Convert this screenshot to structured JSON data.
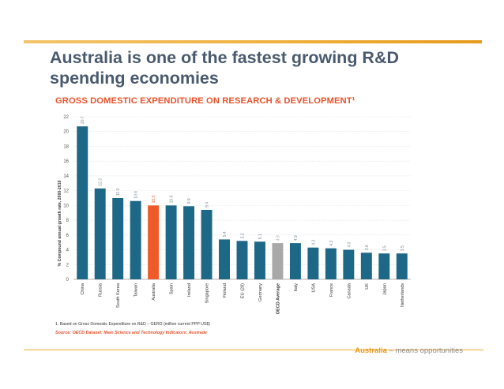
{
  "slide": {
    "title": "Australia is one of the fastest growing R&D spending economies",
    "footnote": "1. Based on Gross Domestic Expenditure on R&D – GERD (million current PPP US$)",
    "source": "Source: OECD Dataset: Main Science and Technology Indicators; Austrade",
    "tagline_brand": "Australia",
    "tagline_rest": "– means opportunities"
  },
  "colors": {
    "default": "#1d6787",
    "highlight": "#ef5a2a",
    "average": "#a8a8a8",
    "accent": "#efae3a"
  },
  "chart_data": {
    "type": "bar",
    "title": "GROSS DOMESTIC EXPENDITURE ON RESEARCH & DEVELOPMENT¹",
    "ylabel": "% Compound annual growth rate, 2000-2010",
    "xlabel": "",
    "ylim": [
      0,
      22
    ],
    "yticks": [
      0,
      2,
      4,
      6,
      8,
      10,
      12,
      14,
      16,
      18,
      20,
      22
    ],
    "categories": [
      "China",
      "Russia",
      "South Korea",
      "Taiwan",
      "Australia",
      "Spain",
      "Ireland",
      "Singapore",
      "Finland",
      "EU (28)",
      "Germany",
      "OECD Average",
      "Italy",
      "USA",
      "France",
      "Canada",
      "UK",
      "Japan",
      "Netherlands"
    ],
    "values": [
      20.7,
      12.3,
      11.0,
      10.6,
      10.0,
      10.0,
      9.9,
      9.4,
      5.4,
      5.2,
      5.1,
      4.9,
      4.9,
      4.3,
      4.2,
      4.0,
      3.6,
      3.5,
      3.5
    ],
    "value_labels": [
      "20.7",
      "12.3",
      "11.0",
      "10.6",
      "10.0",
      "10.0",
      "9.9",
      "9.4",
      "5.4",
      "5.2",
      "5.1",
      "4.9",
      "4.9",
      "4.3",
      "4.2",
      "4.0",
      "3.6",
      "3.5",
      "3.5"
    ],
    "highlight": [
      "Australia"
    ],
    "average": [
      "OECD Average"
    ]
  }
}
